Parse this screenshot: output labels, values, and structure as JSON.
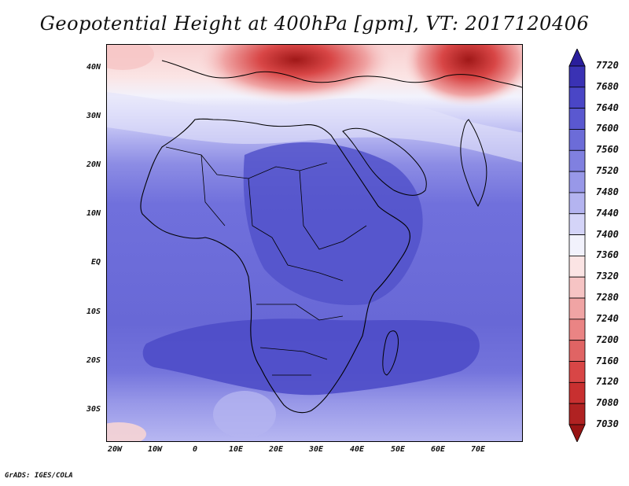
{
  "title": "Geopotential Height at 400hPa [gpm], VT: 2017120406",
  "credit": "GrADS: IGES/COLA",
  "y_axis": [
    "40N",
    "30N",
    "20N",
    "10N",
    "EQ",
    "10S",
    "20S",
    "30S"
  ],
  "x_axis": [
    "20W",
    "10W",
    "0",
    "10E",
    "20E",
    "30E",
    "40E",
    "50E",
    "60E",
    "70E"
  ],
  "colorbar": {
    "labels": [
      "7720",
      "7680",
      "7640",
      "7600",
      "7560",
      "7520",
      "7480",
      "7440",
      "7400",
      "7360",
      "7320",
      "7280",
      "7240",
      "7200",
      "7160",
      "7120",
      "7080",
      "7030"
    ],
    "colors": [
      "#2a1e9c",
      "#3a32b4",
      "#4a46c6",
      "#5a58d0",
      "#6c6cd8",
      "#8080e0",
      "#9898e8",
      "#b4b4f0",
      "#d4d4f8",
      "#f2f2fc",
      "#fbe4e4",
      "#f6c4c4",
      "#f0a4a4",
      "#ea8484",
      "#e06464",
      "#d84646",
      "#c83030",
      "#b02222",
      "#981414"
    ]
  },
  "colors": {
    "ocean": "#7272dc",
    "tropics": "#5050c8",
    "subtropics": "#9a9ae8",
    "ridge": "#d8d8f6",
    "high_latitudes": "#f0a4a4",
    "low_center": "#b01e1e",
    "coastline": "#000000"
  }
}
